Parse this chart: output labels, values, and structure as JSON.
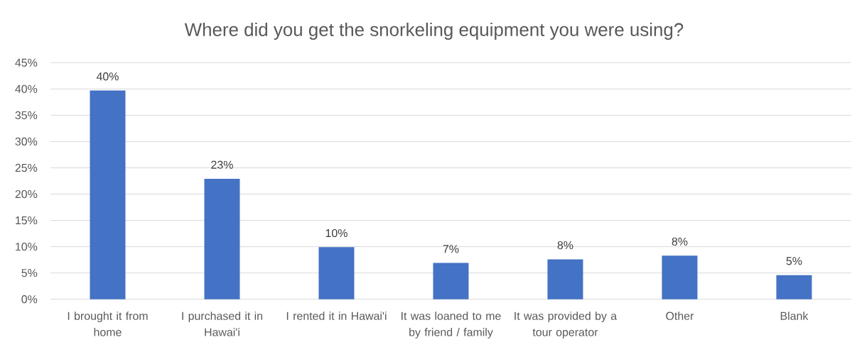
{
  "chart_data": {
    "type": "bar",
    "title": "Where did you get the snorkeling equipment you were using?",
    "categories": [
      "I brought it from home",
      "I purchased it in Hawai'i",
      "I rented it in Hawai'i",
      "It was loaned to me by friend / family",
      "It was provided by a tour operator",
      "Other",
      "Blank"
    ],
    "values": [
      39.7,
      22.9,
      9.9,
      6.9,
      7.6,
      8.3,
      4.6
    ],
    "value_labels": [
      "40%",
      "23%",
      "10%",
      "7%",
      "8%",
      "8%",
      "5%"
    ],
    "color": "#4472c4",
    "ylim": [
      0,
      45
    ],
    "yticks": [
      {
        "value": 0,
        "label": "0%"
      },
      {
        "value": 5,
        "label": "5%"
      },
      {
        "value": 10,
        "label": "10%"
      },
      {
        "value": 15,
        "label": "15%"
      },
      {
        "value": 20,
        "label": "20%"
      },
      {
        "value": 25,
        "label": "25%"
      },
      {
        "value": 30,
        "label": "30%"
      },
      {
        "value": 35,
        "label": "35%"
      },
      {
        "value": 40,
        "label": "40%"
      },
      {
        "value": 45,
        "label": "45%"
      }
    ],
    "grid": "y"
  }
}
